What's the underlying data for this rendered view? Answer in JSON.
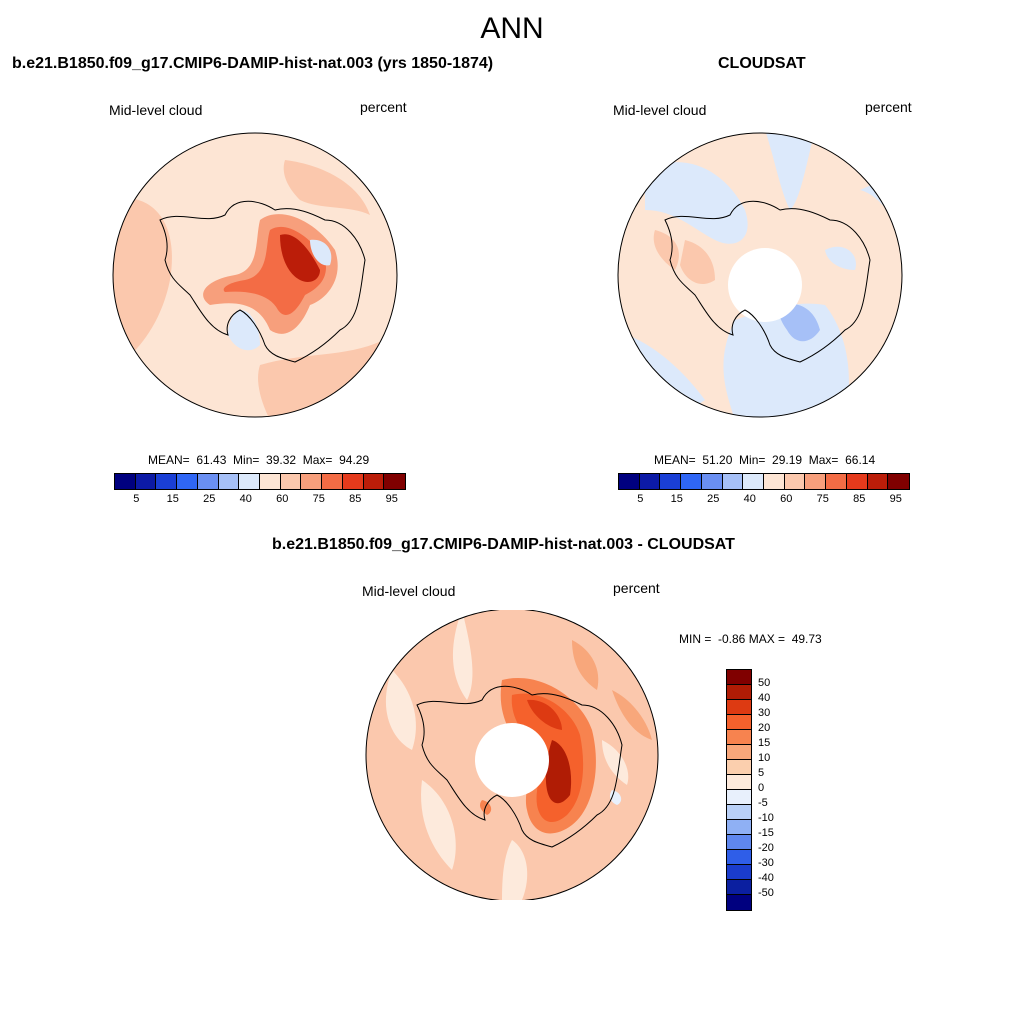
{
  "figure": {
    "title": "ANN",
    "panel1": {
      "title": "b.e21.B1850.f09_g17.CMIP6-DAMIP-hist-nat.003 (yrs 1850-1874)",
      "left_label": "Mid-level cloud",
      "right_label": "percent",
      "stats": "MEAN=  61.43  Min=  39.32  Max=  94.29"
    },
    "panel2": {
      "title": "CLOUDSAT",
      "left_label": "Mid-level cloud",
      "right_label": "percent",
      "stats": "MEAN=  51.20  Min=  29.19  Max=  66.14"
    },
    "panel3": {
      "title": "b.e21.B1850.f09_g17.CMIP6-DAMIP-hist-nat.003 - CLOUDSAT",
      "left_label": "Mid-level cloud",
      "right_label": "percent",
      "stats": "MIN =  -0.86 MAX =  49.73"
    }
  },
  "colorbar_abs": {
    "colors": [
      "#00007f",
      "#0c1aa6",
      "#1a3fd6",
      "#2f66f5",
      "#6a8ff2",
      "#a6c0f7",
      "#dce9fb",
      "#fde5d4",
      "#fbc8ad",
      "#f79f7c",
      "#f36c45",
      "#e53a1c",
      "#bb1d09",
      "#800000"
    ],
    "ticks": [
      "5",
      "15",
      "25",
      "40",
      "60",
      "75",
      "85",
      "95"
    ]
  },
  "colorbar_diff": {
    "colors": [
      "#800000",
      "#b01c05",
      "#dd3a12",
      "#f5612c",
      "#f7834f",
      "#f8a77b",
      "#fbcfae",
      "#fdeadc",
      "#e8f0fc",
      "#b9d0f7",
      "#8fb0f4",
      "#5f87ee",
      "#2f5ee8",
      "#1a3ccc",
      "#0b1fa0",
      "#00007f"
    ],
    "ticks": [
      "50",
      "40",
      "30",
      "20",
      "15",
      "10",
      "5",
      "0",
      "-5",
      "-10",
      "-15",
      "-20",
      "-30",
      "-40",
      "-50"
    ]
  },
  "colors": {
    "land_outline": "#000000",
    "missing": "#ffffff"
  }
}
